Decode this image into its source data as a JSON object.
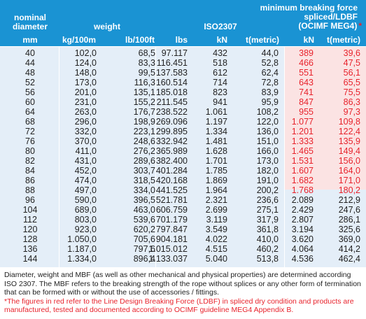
{
  "header": {
    "mbf_title": "minimum breaking force",
    "nominal": "nominal",
    "diameter": "diameter",
    "weight": "weight",
    "iso": "ISO2307",
    "spliced": "spliced/LDBF",
    "ocimf": "(OCIMF MEG4)",
    "asterisk": "*",
    "units": {
      "mm": "mm",
      "kg": "kg/100m",
      "lb": "lb/100ft",
      "lbs": "lbs",
      "kn": "kN",
      "t": "t(metric)",
      "kn2": "kN",
      "t2": "t(metric)"
    }
  },
  "rows": [
    {
      "d": "40",
      "kg": "102,0",
      "lb": "68,5",
      "lbs": "97.117",
      "kn": "432",
      "t": "44,0",
      "kn2": "389",
      "t2": "39,6",
      "red": true
    },
    {
      "d": "44",
      "kg": "124,0",
      "lb": "83,3",
      "lbs": "116.451",
      "kn": "518",
      "t": "52,8",
      "kn2": "466",
      "t2": "47,5",
      "red": true
    },
    {
      "d": "48",
      "kg": "148,0",
      "lb": "99,5",
      "lbs": "137.583",
      "kn": "612",
      "t": "62,4",
      "kn2": "551",
      "t2": "56,1",
      "red": true
    },
    {
      "d": "52",
      "kg": "173,0",
      "lb": "116,3",
      "lbs": "160.514",
      "kn": "714",
      "t": "72,8",
      "kn2": "643",
      "t2": "65,5",
      "red": true
    },
    {
      "d": "56",
      "kg": "201,0",
      "lb": "135,1",
      "lbs": "185.018",
      "kn": "823",
      "t": "83,9",
      "kn2": "741",
      "t2": "75,5",
      "red": true
    },
    {
      "d": "60",
      "kg": "231,0",
      "lb": "155,2",
      "lbs": "211.545",
      "kn": "941",
      "t": "95,9",
      "kn2": "847",
      "t2": "86,3",
      "red": true
    },
    {
      "d": "64",
      "kg": "263,0",
      "lb": "176,7",
      "lbs": "238.522",
      "kn": "1.061",
      "t": "108,2",
      "kn2": "955",
      "t2": "97,3",
      "red": true
    },
    {
      "d": "68",
      "kg": "296,0",
      "lb": "198,9",
      "lbs": "269.096",
      "kn": "1.197",
      "t": "122,0",
      "kn2": "1.077",
      "t2": "109,8",
      "red": true
    },
    {
      "d": "72",
      "kg": "332,0",
      "lb": "223,1",
      "lbs": "299.895",
      "kn": "1.334",
      "t": "136,0",
      "kn2": "1.201",
      "t2": "122,4",
      "red": true
    },
    {
      "d": "76",
      "kg": "370,0",
      "lb": "248,6",
      "lbs": "332.942",
      "kn": "1.481",
      "t": "151,0",
      "kn2": "1.333",
      "t2": "135,9",
      "red": true
    },
    {
      "d": "80",
      "kg": "411,0",
      "lb": "276,2",
      "lbs": "365.989",
      "kn": "1.628",
      "t": "166,0",
      "kn2": "1.465",
      "t2": "149,4",
      "red": true
    },
    {
      "d": "82",
      "kg": "431,0",
      "lb": "289,6",
      "lbs": "382.400",
      "kn": "1.701",
      "t": "173,0",
      "kn2": "1.531",
      "t2": "156,0",
      "red": true
    },
    {
      "d": "84",
      "kg": "452,0",
      "lb": "303,7",
      "lbs": "401.284",
      "kn": "1.785",
      "t": "182,0",
      "kn2": "1.607",
      "t2": "164,0",
      "red": true
    },
    {
      "d": "86",
      "kg": "474,0",
      "lb": "318,5",
      "lbs": "420.168",
      "kn": "1.869",
      "t": "191,0",
      "kn2": "1.682",
      "t2": "171,0",
      "red": true
    },
    {
      "d": "88",
      "kg": "497,0",
      "lb": "334,0",
      "lbs": "441.525",
      "kn": "1.964",
      "t": "200,2",
      "kn2": "1.768",
      "t2": "180,2",
      "red": true
    },
    {
      "d": "96",
      "kg": "590,0",
      "lb": "396,5",
      "lbs": "521.781",
      "kn": "2.321",
      "t": "236,6",
      "kn2": "2.089",
      "t2": "212,9",
      "red": false
    },
    {
      "d": "104",
      "kg": "689,0",
      "lb": "463,0",
      "lbs": "606.759",
      "kn": "2.699",
      "t": "275,1",
      "kn2": "2.429",
      "t2": "247,6",
      "red": false
    },
    {
      "d": "112",
      "kg": "803,0",
      "lb": "539,6",
      "lbs": "701.179",
      "kn": "3.119",
      "t": "317,9",
      "kn2": "2.807",
      "t2": "286,1",
      "red": false
    },
    {
      "d": "120",
      "kg": "923,0",
      "lb": "620,2",
      "lbs": "797.847",
      "kn": "3.549",
      "t": "361,8",
      "kn2": "3.194",
      "t2": "325,6",
      "red": false
    },
    {
      "d": "128",
      "kg": "1.050,0",
      "lb": "705,6",
      "lbs": "904.181",
      "kn": "4.022",
      "t": "410,0",
      "kn2": "3.620",
      "t2": "369,0",
      "red": false
    },
    {
      "d": "136",
      "kg": "1.187,0",
      "lb": "797,6",
      "lbs": "1.015.012",
      "kn": "4.515",
      "t": "460,2",
      "kn2": "4.064",
      "t2": "414,2",
      "red": false
    },
    {
      "d": "144",
      "kg": "1.334,0",
      "lb": "896,4",
      "lbs": "1.133.037",
      "kn": "5.040",
      "t": "513,8",
      "kn2": "4.536",
      "t2": "462,4",
      "red": false
    }
  ],
  "notes": {
    "main": "Diameter, weight and MBF (as well as other mechanical and physical properties) are determined according ISO 2307. The MBF refers to the breaking strength of the rope without splices or any other form of termination that can be formed with or without the use of accessories / fittings.",
    "red": "*The figures in red refer to the Line Design Breaking Force (LDBF) in spliced dry condition and products are manufactured, tested and documented according to OCIMF guideline MEG4 Appendix B."
  },
  "colors": {
    "header_bg": "#1a93d3",
    "body_bg": "#e4eef8",
    "red_band": "#fbe3e3",
    "red_text": "#e8232c"
  }
}
